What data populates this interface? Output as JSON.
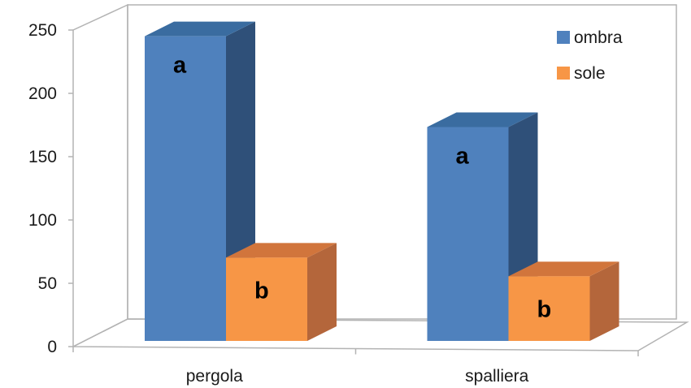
{
  "chart_data": {
    "type": "bar",
    "style": "3d-clustered-column",
    "categories": [
      "pergola",
      "spalliera"
    ],
    "series": [
      {
        "name": "ombra",
        "values": [
          245,
          172
        ],
        "annotations": [
          "a",
          "a"
        ],
        "color": "#4f81bd"
      },
      {
        "name": "sole",
        "values": [
          67,
          52
        ],
        "annotations": [
          "b",
          "b"
        ],
        "color": "#f79646"
      }
    ],
    "title": "",
    "xlabel": "",
    "ylabel": "",
    "ylim": [
      0,
      250
    ],
    "yticks": [
      0,
      50,
      100,
      150,
      200,
      250
    ],
    "grid": false,
    "legend_position": "top-right"
  },
  "colors": {
    "axis_line": "#b3b3b3",
    "ombra_top": "#3a6ca0",
    "ombra_side": "#2f5079",
    "sole_top": "#d1753c",
    "sole_side": "#b4663b"
  }
}
